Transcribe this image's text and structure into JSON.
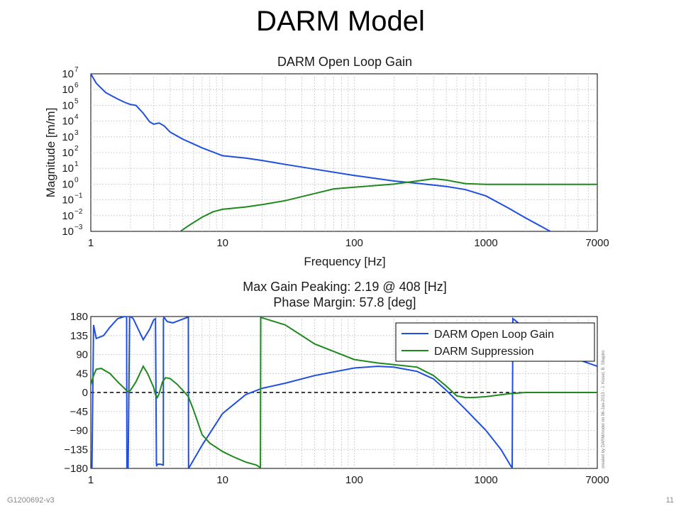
{
  "slide": {
    "title": "DARM Model",
    "doc_id": "G1200692-v3",
    "page_number": "11"
  },
  "colors": {
    "series_open_loop": "#1f4fe0",
    "series_suppression": "#1e8a1e",
    "reference_line": "#000000"
  },
  "chart_data": [
    {
      "type": "line",
      "title": "DARM Open Loop Gain",
      "xlabel": "Frequency [Hz]",
      "ylabel": "Magnitude [m/m]",
      "xscale": "log",
      "yscale": "log",
      "xlim": [
        1,
        7000
      ],
      "ylim_exponents": [
        -3,
        7
      ],
      "xtick_labels": [
        "1",
        "10",
        "100",
        "1000",
        "7000"
      ],
      "ytick_labels": [
        {
          "base": "10",
          "exp": "7"
        },
        {
          "base": "10",
          "exp": "6"
        },
        {
          "base": "10",
          "exp": "5"
        },
        {
          "base": "10",
          "exp": "4"
        },
        {
          "base": "10",
          "exp": "3"
        },
        {
          "base": "10",
          "exp": "2"
        },
        {
          "base": "10",
          "exp": "1"
        },
        {
          "base": "10",
          "exp": "0"
        },
        {
          "base": "10",
          "exp": "−1"
        },
        {
          "base": "10",
          "exp": "−2"
        },
        {
          "base": "10",
          "exp": "−3"
        }
      ],
      "grid": true,
      "series": [
        {
          "name": "DARM Open Loop Gain",
          "x": [
            1,
            1.1,
            1.3,
            1.6,
            1.8,
            2,
            2.2,
            2.5,
            2.8,
            3,
            3.3,
            3.6,
            4,
            5,
            7,
            10,
            15,
            20,
            30,
            50,
            100,
            200,
            300,
            500,
            700,
            1000,
            1500,
            2000,
            3000,
            3500
          ],
          "log10_y": [
            7,
            6.4,
            5.8,
            5.4,
            5.2,
            5.05,
            5.0,
            4.5,
            3.95,
            3.8,
            3.88,
            3.7,
            3.3,
            2.85,
            2.3,
            1.8,
            1.65,
            1.5,
            1.25,
            0.95,
            0.55,
            0.2,
            0.05,
            -0.15,
            -0.35,
            -0.75,
            -1.55,
            -2.15,
            -2.95,
            -3.2
          ]
        },
        {
          "name": "DARM Suppression",
          "x": [
            4.7,
            5.5,
            7,
            8.5,
            10,
            15,
            20,
            30,
            50,
            70,
            100,
            200,
            300,
            400,
            500,
            700,
            1000,
            2000,
            7000
          ],
          "log10_y": [
            -3.05,
            -2.65,
            -2.1,
            -1.75,
            -1.6,
            -1.45,
            -1.3,
            -1.05,
            -0.6,
            -0.3,
            -0.2,
            0.0,
            0.2,
            0.34,
            0.25,
            0.03,
            -0.02,
            -0.02,
            -0.02
          ]
        }
      ]
    },
    {
      "type": "line",
      "title": "Max Gain Peaking: 2.19 @ 408 [Hz]",
      "subtitle": "Phase Margin: 57.8 [deg]",
      "xscale": "log",
      "xlim": [
        1,
        7000
      ],
      "ylim": [
        -180,
        180
      ],
      "xtick_labels": [
        "1",
        "10",
        "100",
        "1000",
        "7000"
      ],
      "ytick_labels": [
        "180",
        "135",
        "90",
        "45",
        "0",
        "−45",
        "−90",
        "−135",
        "−180"
      ],
      "grid": true,
      "legend": {
        "placement": "top-right",
        "entries": [
          "DARM Open Loop Gain",
          "DARM Suppression"
        ]
      },
      "watermark": "created by DARMmodel on 06-Jan-2013 - J. Kissel, B. Shapiro",
      "reference_line": {
        "y": 0,
        "style": "dashed"
      },
      "series": [
        {
          "name": "DARM Open Loop Gain",
          "x": [
            1.0,
            1.02,
            1.05,
            1.1,
            1.25,
            1.4,
            1.6,
            1.8,
            1.87,
            1.88,
            1.9,
            1.92,
            1.97,
            2.0,
            2.1,
            2.5,
            2.8,
            3.0,
            3.1,
            3.15,
            3.16,
            3.2,
            3.4,
            3.5,
            3.55,
            3.56,
            3.6,
            3.8,
            4.2,
            4.8,
            5.4,
            5.5,
            5.52,
            5.6,
            7,
            10,
            15,
            20,
            30,
            50,
            100,
            150,
            200,
            300,
            400,
            500,
            700,
            1000,
            1300,
            1550,
            1580,
            1600,
            1650,
            2000,
            3000,
            4000,
            5000,
            7000
          ],
          "y": [
            -180,
            -180,
            160,
            128,
            135,
            155,
            175,
            180,
            180,
            -178,
            -180,
            -180,
            178,
            180,
            175,
            125,
            150,
            172,
            175,
            -170,
            -175,
            -170,
            -170,
            -172,
            -172,
            175,
            178,
            168,
            165,
            172,
            178,
            178,
            -178,
            -177,
            -125,
            -50,
            -5,
            10,
            22,
            40,
            58,
            62,
            60,
            50,
            32,
            5,
            -40,
            -90,
            -135,
            -175,
            -178,
            175,
            172,
            150,
            110,
            90,
            78,
            62
          ]
        },
        {
          "name": "DARM Suppression",
          "x": [
            1.0,
            1.05,
            1.1,
            1.2,
            1.4,
            1.6,
            1.8,
            1.9,
            2.0,
            2.2,
            2.5,
            2.7,
            3.0,
            3.1,
            3.2,
            3.3,
            3.5,
            3.7,
            4.0,
            4.5,
            5,
            5.5,
            6,
            7,
            8,
            10,
            12,
            15,
            18,
            19.4,
            19.5,
            20,
            30,
            50,
            100,
            150,
            200,
            300,
            400,
            500,
            600,
            700,
            800,
            1000,
            1500,
            2000,
            7000
          ],
          "y": [
            18,
            40,
            55,
            57,
            45,
            25,
            10,
            2,
            5,
            25,
            62,
            45,
            12,
            -5,
            -12,
            -3,
            25,
            35,
            33,
            20,
            5,
            -10,
            -40,
            -100,
            -120,
            -140,
            -152,
            -165,
            -172,
            -178,
            178,
            177,
            160,
            115,
            78,
            70,
            66,
            60,
            40,
            15,
            -8,
            -12,
            -12,
            -10,
            -3,
            0,
            0
          ]
        }
      ]
    }
  ]
}
